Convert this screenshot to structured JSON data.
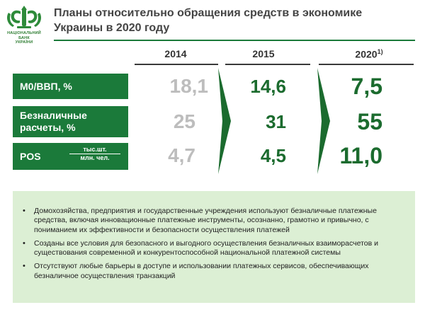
{
  "header": {
    "title": "Планы относительно обращения средств в экономике Украины в 2020 году",
    "logo": {
      "line1": "НАЦІОНАЛЬНИЙ",
      "line2": "БАНК",
      "line3": "УКРАЇНИ"
    }
  },
  "columns": [
    {
      "label": "2014"
    },
    {
      "label": "2015"
    },
    {
      "label": "2020",
      "sup": "1)"
    }
  ],
  "rows": [
    {
      "label": "М0/ВВП, %",
      "values": [
        "18,1",
        "14,6",
        "7,5"
      ]
    },
    {
      "label_line1": "Безналичные",
      "label_line2": "расчеты, %",
      "values": [
        "25",
        "31",
        "55"
      ]
    },
    {
      "label": "POS",
      "unit_num": "тыс.шт.",
      "unit_den": "млн. чел.",
      "values": [
        "4,7",
        "4,5",
        "11,0"
      ]
    }
  ],
  "bullets": [
    "Домохозяйства, предприятия и государственные учреждения используют безналичные платежные средства, включая инновационные платежные инструменты, осознанно, грамотно и привычно, с пониманием их эффективности и безопасности осуществления платежей",
    "Созданы все условия для безопасного и выгодного осуществления безналичных взаиморасчетов и существования современной и конкурентоспособной национальной платежной системы",
    "Отсутствуют любые барьеры в доступе и использовании платежных сервисов, обеспечивающих безналичное осуществления транзакций"
  ],
  "colors": {
    "brand_green": "#1b7a3a",
    "value_green": "#1b6b2e",
    "value_grey": "#bdbdbd",
    "panel_bg": "#dcefd4"
  }
}
